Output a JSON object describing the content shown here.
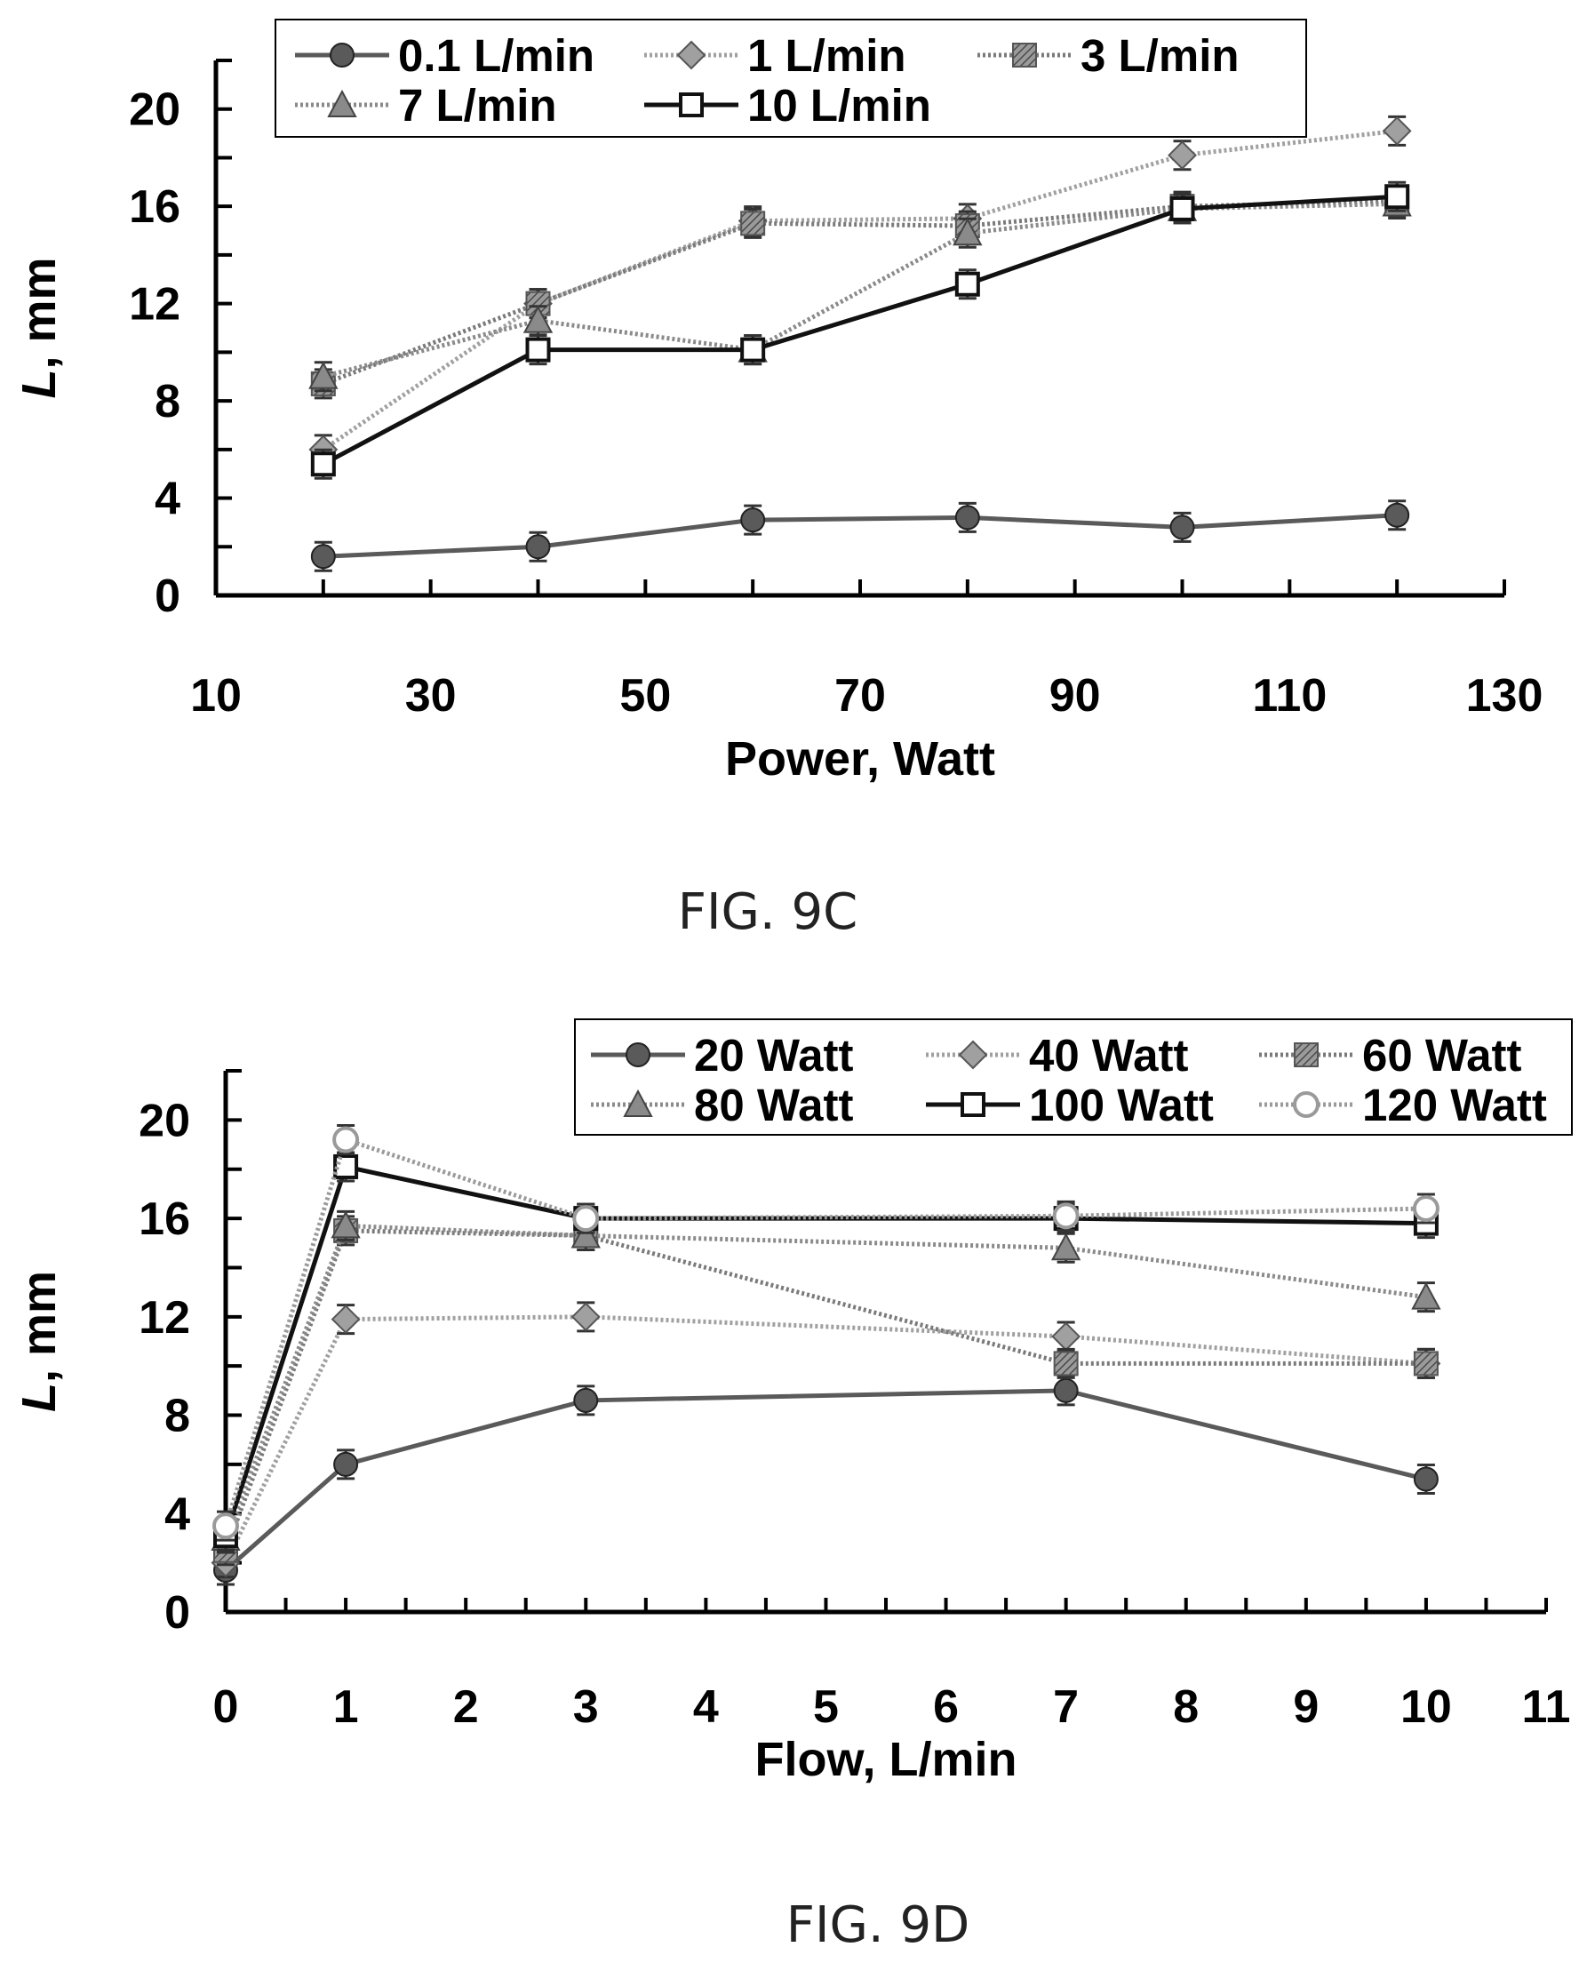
{
  "figures": [
    {
      "caption": "FIG. 9C"
    },
    {
      "caption": "FIG. 9D"
    }
  ],
  "chart_data": [
    {
      "type": "line",
      "xlabel": "Power, Watt",
      "ylabel_italic": "L",
      "ylabel_rest": ", mm",
      "xlim": [
        10,
        130
      ],
      "ylim": [
        0,
        22
      ],
      "xticks": [
        10,
        30,
        50,
        70,
        90,
        110,
        130
      ],
      "yticks": [
        0,
        4,
        8,
        12,
        16,
        20
      ],
      "legend_position": "top",
      "x": [
        20,
        40,
        60,
        80,
        100,
        120
      ],
      "series": [
        {
          "name": "0.1 L/min",
          "marker": "circle",
          "color": "#5a5a5a",
          "line": "solid",
          "values": [
            1.6,
            2.0,
            3.1,
            3.2,
            2.8,
            3.3
          ]
        },
        {
          "name": "1 L/min",
          "marker": "diamond",
          "color": "#a0a0a0",
          "line": "dotted",
          "values": [
            6.0,
            12.0,
            15.4,
            15.5,
            18.1,
            19.1
          ]
        },
        {
          "name": "3 L/min",
          "marker": "square-hatched",
          "color": "#7a7a7a",
          "line": "dotted",
          "values": [
            8.7,
            12.0,
            15.3,
            15.2,
            16.0,
            16.2
          ]
        },
        {
          "name": "7 L/min",
          "marker": "triangle",
          "color": "#8a8a8a",
          "line": "dotted",
          "values": [
            9.0,
            11.3,
            10.1,
            14.9,
            15.9,
            16.1
          ]
        },
        {
          "name": "10 L/min",
          "marker": "square-open",
          "color": "#111111",
          "line": "solid",
          "values": [
            5.4,
            10.1,
            10.1,
            12.8,
            15.9,
            16.4
          ]
        }
      ]
    },
    {
      "type": "line",
      "xlabel": "Flow, L/min",
      "ylabel_italic": "L",
      "ylabel_rest": ", mm",
      "xlim": [
        0,
        11
      ],
      "ylim": [
        0,
        22
      ],
      "xticks": [
        0,
        1,
        2,
        3,
        4,
        5,
        6,
        7,
        8,
        9,
        10,
        11
      ],
      "yticks": [
        0,
        4,
        8,
        12,
        16,
        20
      ],
      "legend_position": "top-right",
      "x": [
        0,
        1,
        3,
        7,
        10
      ],
      "series": [
        {
          "name": "20 Watt",
          "marker": "circle",
          "color": "#5a5a5a",
          "line": "solid",
          "values": [
            1.7,
            6.0,
            8.6,
            9.0,
            5.4
          ]
        },
        {
          "name": "40 Watt",
          "marker": "diamond",
          "color": "#a0a0a0",
          "line": "dotted",
          "values": [
            2.0,
            11.9,
            12.0,
            11.2,
            10.1
          ]
        },
        {
          "name": "60 Watt",
          "marker": "square-hatched",
          "color": "#7a7a7a",
          "line": "dotted",
          "values": [
            2.5,
            15.5,
            15.3,
            10.1,
            10.1
          ]
        },
        {
          "name": "80 Watt",
          "marker": "triangle",
          "color": "#8a8a8a",
          "line": "dotted",
          "values": [
            3.0,
            15.7,
            15.3,
            14.8,
            12.8
          ]
        },
        {
          "name": "100 Watt",
          "marker": "square-open",
          "color": "#111111",
          "line": "solid",
          "values": [
            3.1,
            18.1,
            16.0,
            16.0,
            15.8
          ]
        },
        {
          "name": "120 Watt",
          "marker": "circle-open",
          "color": "#9a9a9a",
          "line": "dotted",
          "values": [
            3.5,
            19.2,
            16.0,
            16.1,
            16.4
          ]
        }
      ]
    }
  ]
}
